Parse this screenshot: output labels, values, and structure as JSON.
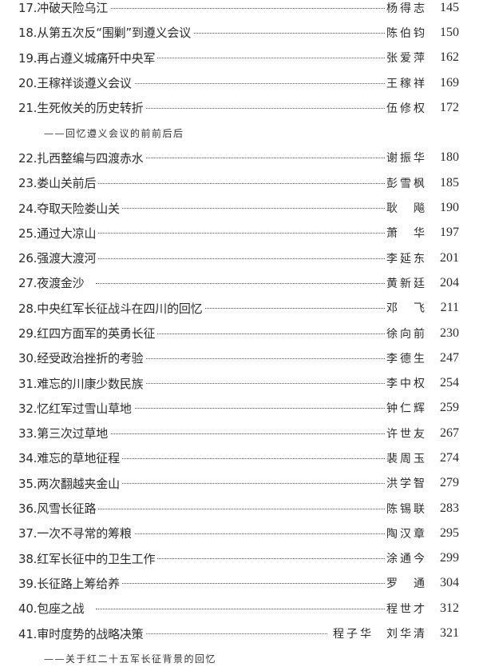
{
  "entries": [
    {
      "no": "17.",
      "title": "冲破天险乌江",
      "authors": [
        "杨得志"
      ],
      "page": "145"
    },
    {
      "no": "18.",
      "title": "从第五次反“围剿”到遵义会议",
      "authors": [
        "陈伯钧"
      ],
      "page": "150"
    },
    {
      "no": "19.",
      "title": "再占遵义城痛歼中央军",
      "authors": [
        "张爱萍"
      ],
      "page": "162"
    },
    {
      "no": "20.",
      "title": "王稼祥谈遵义会议",
      "authors": [
        "王稼祥"
      ],
      "page": "169"
    },
    {
      "no": "21.",
      "title": "生死攸关的历史转折",
      "authors": [
        "伍修权"
      ],
      "page": "172",
      "subtitle": "——回忆遵义会议的前前后后"
    },
    {
      "no": "22.",
      "title": "扎西整编与四渡赤水",
      "authors": [
        "谢振华"
      ],
      "page": "180"
    },
    {
      "no": "23.",
      "title": "娄山关前后",
      "authors": [
        "彭雪枫"
      ],
      "page": "185"
    },
    {
      "no": "24.",
      "title": "夺取天险娄山关",
      "authors": [
        "耿　飚"
      ],
      "page": "190"
    },
    {
      "no": "25.",
      "title": "通过大凉山",
      "authors": [
        "萧　华"
      ],
      "page": "197"
    },
    {
      "no": "26.",
      "title": "强渡大渡河",
      "authors": [
        "李延东"
      ],
      "page": "201"
    },
    {
      "no": "27.",
      "title": "夜渡金沙",
      "authors": [
        "黄新廷"
      ],
      "page": "204"
    },
    {
      "no": "28.",
      "title": "中央红军长征战斗在四川的回忆",
      "authors": [
        "邓　飞"
      ],
      "page": "211"
    },
    {
      "no": "29.",
      "title": "红四方面军的英勇长征",
      "authors": [
        "徐向前"
      ],
      "page": "230"
    },
    {
      "no": "30.",
      "title": "经受政治挫折的考验",
      "authors": [
        "李德生"
      ],
      "page": "247"
    },
    {
      "no": "31.",
      "title": "难忘的川康少数民族",
      "authors": [
        "李中权"
      ],
      "page": "254"
    },
    {
      "no": "32.",
      "title": "忆红军过雪山草地",
      "authors": [
        "钟仁辉"
      ],
      "page": "259"
    },
    {
      "no": "33.",
      "title": "第三次过草地",
      "authors": [
        "许世友"
      ],
      "page": "267"
    },
    {
      "no": "34.",
      "title": "难忘的草地征程",
      "authors": [
        "裴周玉"
      ],
      "page": "274"
    },
    {
      "no": "35.",
      "title": "两次翻越夹金山",
      "authors": [
        "洪学智"
      ],
      "page": "279"
    },
    {
      "no": "36.",
      "title": "风雪长征路",
      "authors": [
        "陈锡联"
      ],
      "page": "283"
    },
    {
      "no": "37.",
      "title": "一次不寻常的筹粮",
      "authors": [
        "陶汉章"
      ],
      "page": "295"
    },
    {
      "no": "38.",
      "title": "红军长征中的卫生工作",
      "authors": [
        "涂通今"
      ],
      "page": "299"
    },
    {
      "no": "39.",
      "title": "长征路上筹给养",
      "authors": [
        "罗　通"
      ],
      "page": "304"
    },
    {
      "no": "40.",
      "title": "包座之战",
      "authors": [
        "程世才"
      ],
      "page": "312"
    },
    {
      "no": "41.",
      "title": "审时度势的战略决策",
      "authors": [
        "程子华",
        "刘华清"
      ],
      "page": "321",
      "subtitle": "——关于红二十五军长征背景的回忆"
    }
  ]
}
